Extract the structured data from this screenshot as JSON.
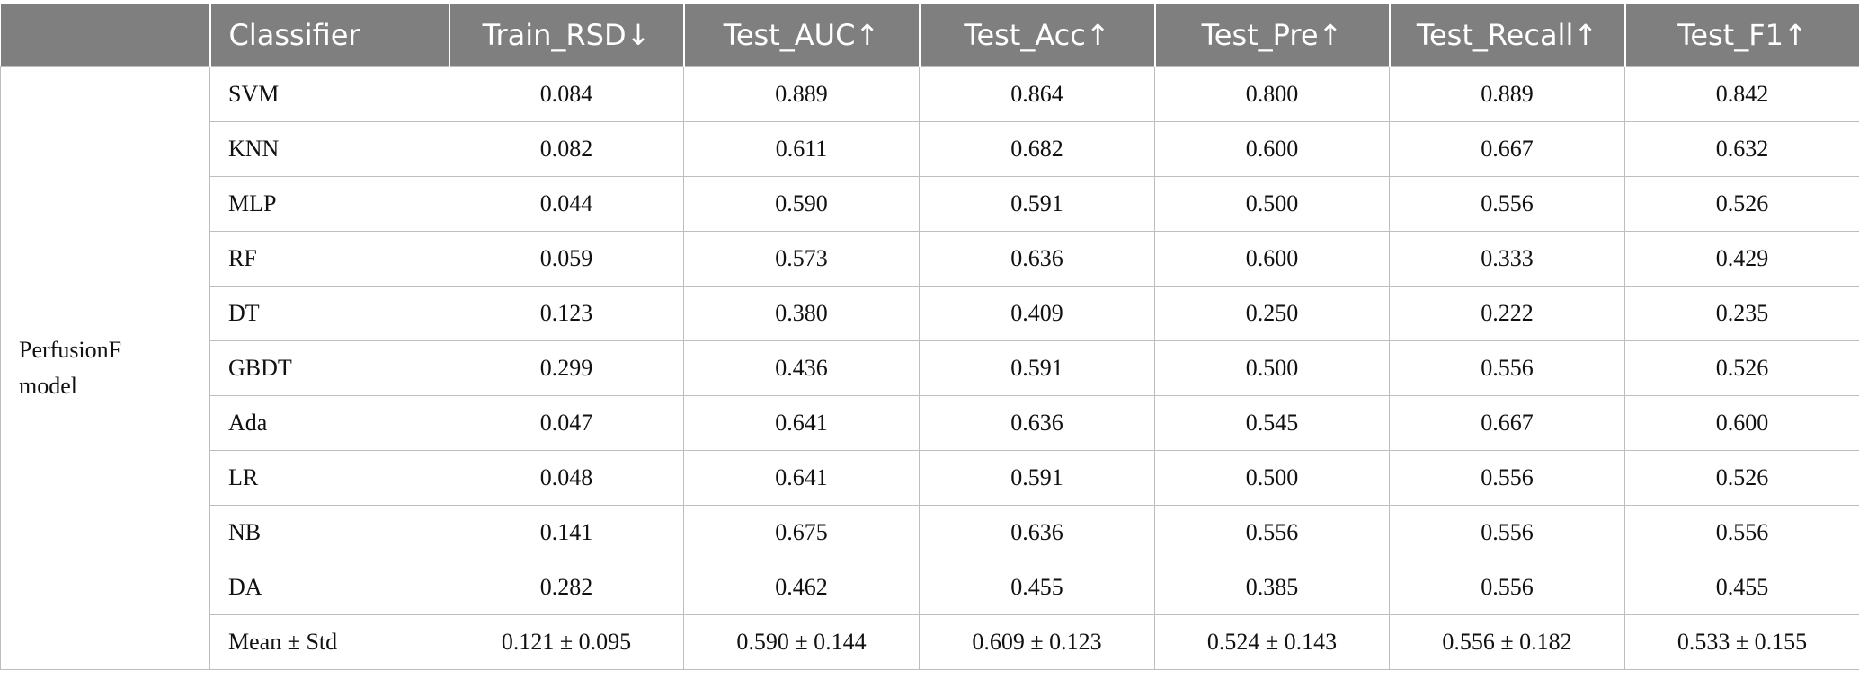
{
  "header": {
    "model": "",
    "classifier": "Classifier",
    "train_rsd": "Train_RSD↓",
    "test_auc": "Test_AUC↑",
    "test_acc": "Test_Acc↑",
    "test_pre": "Test_Pre↑",
    "test_recall": "Test_Recall↑",
    "test_f1": "Test_F1↑"
  },
  "model": {
    "line1": "PerfusionF",
    "line2": "model"
  },
  "rows": [
    {
      "classifier": "SVM",
      "train_rsd": "0.084",
      "test_auc": "0.889",
      "test_acc": "0.864",
      "test_pre": "0.800",
      "test_recall": "0.889",
      "test_f1": "0.842"
    },
    {
      "classifier": "KNN",
      "train_rsd": "0.082",
      "test_auc": "0.611",
      "test_acc": "0.682",
      "test_pre": "0.600",
      "test_recall": "0.667",
      "test_f1": "0.632"
    },
    {
      "classifier": "MLP",
      "train_rsd": "0.044",
      "test_auc": "0.590",
      "test_acc": "0.591",
      "test_pre": "0.500",
      "test_recall": "0.556",
      "test_f1": "0.526"
    },
    {
      "classifier": "RF",
      "train_rsd": "0.059",
      "test_auc": "0.573",
      "test_acc": "0.636",
      "test_pre": "0.600",
      "test_recall": "0.333",
      "test_f1": "0.429"
    },
    {
      "classifier": "DT",
      "train_rsd": "0.123",
      "test_auc": "0.380",
      "test_acc": "0.409",
      "test_pre": "0.250",
      "test_recall": "0.222",
      "test_f1": "0.235"
    },
    {
      "classifier": "GBDT",
      "train_rsd": "0.299",
      "test_auc": "0.436",
      "test_acc": "0.591",
      "test_pre": "0.500",
      "test_recall": "0.556",
      "test_f1": "0.526"
    },
    {
      "classifier": "Ada",
      "train_rsd": "0.047",
      "test_auc": "0.641",
      "test_acc": "0.636",
      "test_pre": "0.545",
      "test_recall": "0.667",
      "test_f1": "0.600"
    },
    {
      "classifier": "LR",
      "train_rsd": "0.048",
      "test_auc": "0.641",
      "test_acc": "0.591",
      "test_pre": "0.500",
      "test_recall": "0.556",
      "test_f1": "0.526"
    },
    {
      "classifier": "NB",
      "train_rsd": "0.141",
      "test_auc": "0.675",
      "test_acc": "0.636",
      "test_pre": "0.556",
      "test_recall": "0.556",
      "test_f1": "0.556"
    },
    {
      "classifier": "DA",
      "train_rsd": "0.282",
      "test_auc": "0.462",
      "test_acc": "0.455",
      "test_pre": "0.385",
      "test_recall": "0.556",
      "test_f1": "0.455"
    },
    {
      "classifier": "Mean ± Std",
      "train_rsd": "0.121 ± 0.095",
      "test_auc": "0.590 ± 0.144",
      "test_acc": "0.609 ± 0.123",
      "test_pre": "0.524 ± 0.143",
      "test_recall": "0.556 ± 0.182",
      "test_f1": "0.533 ± 0.155"
    }
  ],
  "colors": {
    "header_bg": "#7f7f7f",
    "header_text": "#ffffff",
    "grid_line": "#bdbdbd"
  }
}
